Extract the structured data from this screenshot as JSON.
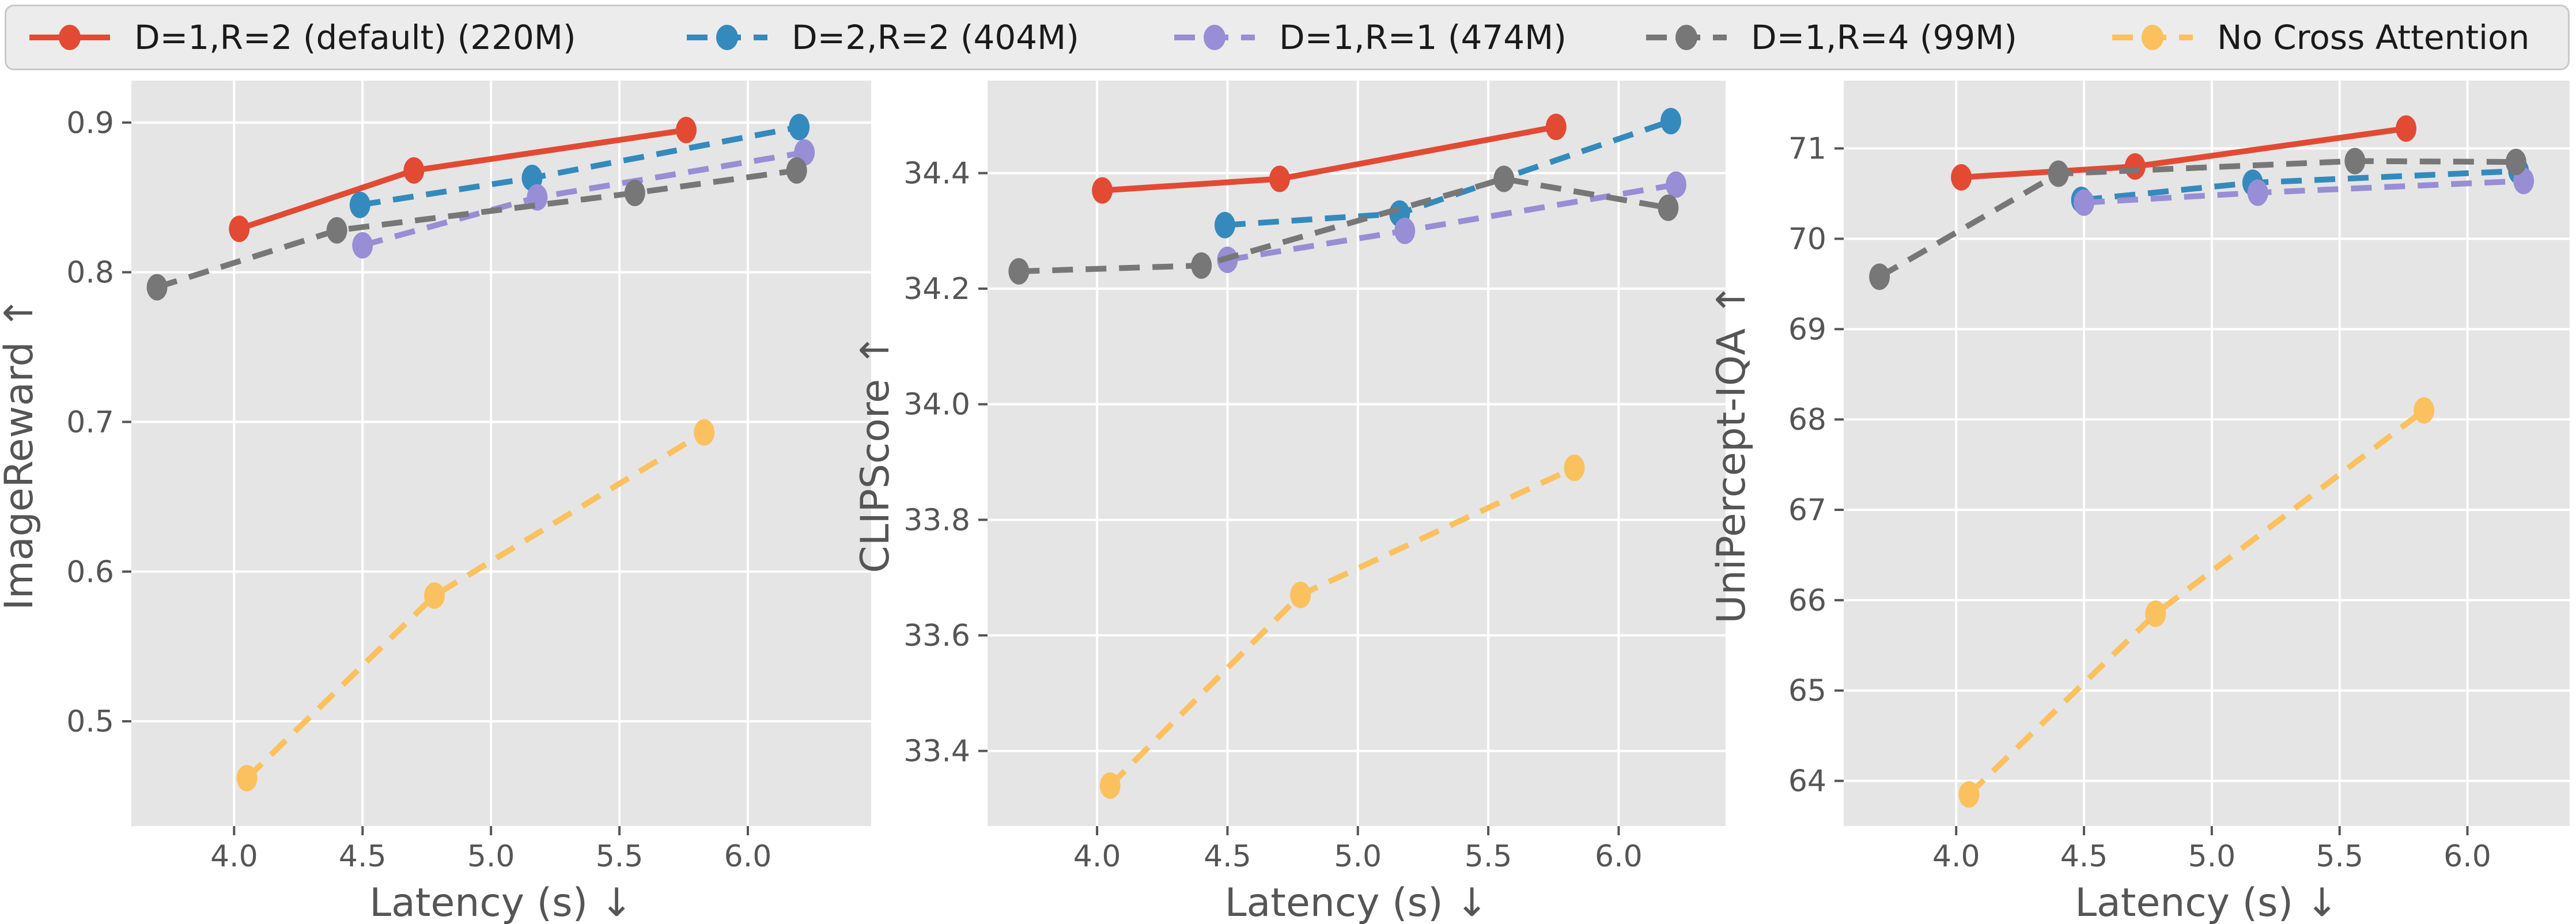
{
  "style": {
    "figure_bg": "#ffffff",
    "plot_bg": "#e5e5e5",
    "grid_color": "#ffffff",
    "tick_text_color": "#555555",
    "axis_label_color": "#555555",
    "legend_bg": "#ececec",
    "legend_border": "#c9c9c9",
    "legend_text_color": "#1a1a1a"
  },
  "legend": {
    "position": "top",
    "entries": [
      {
        "label": "D=1,R=2 (default) (220M)",
        "color": "#E24A33",
        "dashed": false
      },
      {
        "label": "D=2,R=2 (404M)",
        "color": "#348ABD",
        "dashed": true
      },
      {
        "label": "D=1,R=1 (474M)",
        "color": "#988ED5",
        "dashed": true
      },
      {
        "label": "D=1,R=4 (99M)",
        "color": "#777777",
        "dashed": true
      },
      {
        "label": "No Cross Attention",
        "color": "#FBC15E",
        "dashed": true
      }
    ]
  },
  "chart_data": [
    {
      "type": "line",
      "title": "",
      "xlabel": "Latency (s) ↓",
      "ylabel": "ImageReward ↑",
      "grid": true,
      "legend_position": "top-shared",
      "xlim": [
        3.6,
        6.48
      ],
      "ylim": [
        0.43,
        0.928
      ],
      "xticks": [
        {
          "v": 4.0,
          "label": "4.0"
        },
        {
          "v": 4.5,
          "label": "4.5"
        },
        {
          "v": 5.0,
          "label": "5.0"
        },
        {
          "v": 5.5,
          "label": "5.5"
        },
        {
          "v": 6.0,
          "label": "6.0"
        }
      ],
      "yticks": [
        {
          "v": 0.5,
          "label": "0.5"
        },
        {
          "v": 0.6,
          "label": "0.6"
        },
        {
          "v": 0.7,
          "label": "0.7"
        },
        {
          "v": 0.8,
          "label": "0.8"
        },
        {
          "v": 0.9,
          "label": "0.9"
        }
      ],
      "series": [
        {
          "name": "D=1,R=2 (default) (220M)",
          "x": [
            4.02,
            4.7,
            5.76
          ],
          "y": [
            0.829,
            0.868,
            0.895
          ]
        },
        {
          "name": "D=2,R=2 (404M)",
          "x": [
            4.49,
            5.16,
            6.2
          ],
          "y": [
            0.845,
            0.863,
            0.897
          ]
        },
        {
          "name": "D=1,R=1 (474M)",
          "x": [
            4.5,
            5.18,
            6.22
          ],
          "y": [
            0.818,
            0.85,
            0.88
          ]
        },
        {
          "name": "D=1,R=4 (99M)",
          "x": [
            3.7,
            4.4,
            5.56,
            6.19
          ],
          "y": [
            0.79,
            0.828,
            0.853,
            0.868
          ]
        },
        {
          "name": "No Cross Attention",
          "x": [
            4.05,
            4.78,
            5.83
          ],
          "y": [
            0.462,
            0.584,
            0.693
          ]
        }
      ]
    },
    {
      "type": "line",
      "title": "",
      "xlabel": "Latency (s) ↓",
      "ylabel": "CLIPScore ↑",
      "grid": true,
      "legend_position": "top-shared",
      "xlim": [
        3.58,
        6.41
      ],
      "ylim": [
        33.27,
        34.56
      ],
      "xticks": [
        {
          "v": 4.0,
          "label": "4.0"
        },
        {
          "v": 4.5,
          "label": "4.5"
        },
        {
          "v": 5.0,
          "label": "5.0"
        },
        {
          "v": 5.5,
          "label": "5.5"
        },
        {
          "v": 6.0,
          "label": "6.0"
        }
      ],
      "yticks": [
        {
          "v": 33.4,
          "label": "33.4"
        },
        {
          "v": 33.6,
          "label": "33.6"
        },
        {
          "v": 33.8,
          "label": "33.8"
        },
        {
          "v": 34.0,
          "label": "34.0"
        },
        {
          "v": 34.2,
          "label": "34.2"
        },
        {
          "v": 34.4,
          "label": "34.4"
        }
      ],
      "series": [
        {
          "name": "D=1,R=2 (default) (220M)",
          "x": [
            4.02,
            4.7,
            5.76
          ],
          "y": [
            34.37,
            34.39,
            34.48
          ]
        },
        {
          "name": "D=2,R=2 (404M)",
          "x": [
            4.49,
            5.16,
            6.2
          ],
          "y": [
            34.31,
            34.33,
            34.49
          ]
        },
        {
          "name": "D=1,R=1 (474M)",
          "x": [
            4.5,
            5.18,
            6.22
          ],
          "y": [
            34.25,
            34.3,
            34.38
          ]
        },
        {
          "name": "D=1,R=4 (99M)",
          "x": [
            3.7,
            4.4,
            5.56,
            6.19
          ],
          "y": [
            34.23,
            34.24,
            34.39,
            34.34
          ]
        },
        {
          "name": "No Cross Attention",
          "x": [
            4.05,
            4.78,
            5.83
          ],
          "y": [
            33.34,
            33.67,
            33.89
          ]
        }
      ]
    },
    {
      "type": "line",
      "title": "",
      "xlabel": "Latency (s) ↓",
      "ylabel": "UniPercept-IQA ↑",
      "grid": true,
      "legend_position": "top-shared",
      "xlim": [
        3.56,
        6.4
      ],
      "ylim": [
        63.5,
        71.75
      ],
      "xticks": [
        {
          "v": 4.0,
          "label": "4.0"
        },
        {
          "v": 4.5,
          "label": "4.5"
        },
        {
          "v": 5.0,
          "label": "5.0"
        },
        {
          "v": 5.5,
          "label": "5.5"
        },
        {
          "v": 6.0,
          "label": "6.0"
        }
      ],
      "yticks": [
        {
          "v": 64,
          "label": "64"
        },
        {
          "v": 65,
          "label": "65"
        },
        {
          "v": 66,
          "label": "66"
        },
        {
          "v": 67,
          "label": "67"
        },
        {
          "v": 68,
          "label": "68"
        },
        {
          "v": 69,
          "label": "69"
        },
        {
          "v": 70,
          "label": "70"
        },
        {
          "v": 71,
          "label": "71"
        }
      ],
      "series": [
        {
          "name": "D=1,R=2 (default) (220M)",
          "x": [
            4.02,
            4.7,
            5.76
          ],
          "y": [
            70.68,
            70.8,
            71.22
          ]
        },
        {
          "name": "D=2,R=2 (404M)",
          "x": [
            4.49,
            5.16,
            6.2
          ],
          "y": [
            70.43,
            70.62,
            70.75
          ]
        },
        {
          "name": "D=1,R=1 (474M)",
          "x": [
            4.5,
            5.18,
            6.22
          ],
          "y": [
            70.4,
            70.51,
            70.64
          ]
        },
        {
          "name": "D=1,R=4 (99M)",
          "x": [
            3.7,
            4.4,
            5.56,
            6.19
          ],
          "y": [
            69.58,
            70.72,
            70.86,
            70.85
          ]
        },
        {
          "name": "No Cross Attention",
          "x": [
            4.05,
            4.78,
            5.83
          ],
          "y": [
            63.85,
            65.85,
            68.1
          ]
        }
      ]
    }
  ]
}
